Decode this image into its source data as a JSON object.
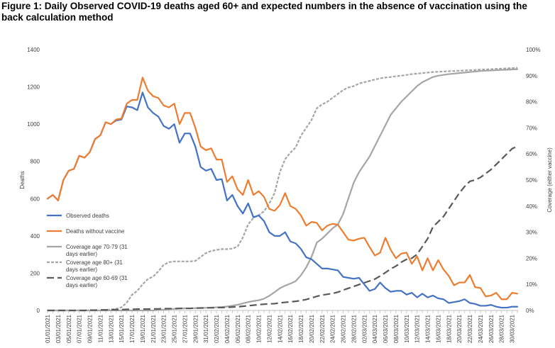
{
  "figure": {
    "title": "Figure 1: Daily Observed COVID-19 deaths aged 60+ and expected numbers in the absence of vaccination using the back calculation method"
  },
  "chart_data": {
    "type": "line",
    "title": "Figure 1: Daily Observed COVID-19 deaths aged 60+ and expected numbers in the absence of vaccination using the back calculation method",
    "xlabel": "",
    "ylabel": "Deaths",
    "y2label": "Coverage (either vaccine)",
    "ylim": [
      0,
      1400
    ],
    "y2lim": [
      0,
      100
    ],
    "yticks": [
      "0",
      "200",
      "400",
      "600",
      "800",
      "1000",
      "1200",
      "1400"
    ],
    "y2ticks": [
      "0%",
      "10%",
      "20%",
      "30%",
      "40%",
      "50%",
      "60%",
      "70%",
      "80%",
      "90%",
      "100%"
    ],
    "x": [
      "01/01/2021",
      "02/01/2021",
      "03/01/2021",
      "04/01/2021",
      "05/01/2021",
      "06/01/2021",
      "07/01/2021",
      "08/01/2021",
      "09/01/2021",
      "10/01/2021",
      "11/01/2021",
      "12/01/2021",
      "13/01/2021",
      "14/01/2021",
      "15/01/2021",
      "16/01/2021",
      "17/01/2021",
      "18/01/2021",
      "19/01/2021",
      "20/01/2021",
      "21/01/2021",
      "22/01/2021",
      "23/01/2021",
      "24/01/2021",
      "25/01/2021",
      "26/01/2021",
      "27/01/2021",
      "28/01/2021",
      "29/01/2021",
      "30/01/2021",
      "31/01/2021",
      "01/02/2021",
      "02/02/2021",
      "03/02/2021",
      "04/02/2021",
      "05/02/2021",
      "06/02/2021",
      "07/02/2021",
      "08/02/2021",
      "09/02/2021",
      "10/02/2021",
      "11/02/2021",
      "12/02/2021",
      "13/02/2021",
      "14/02/2021",
      "15/02/2021",
      "16/02/2021",
      "17/02/2021",
      "18/02/2021",
      "19/02/2021",
      "20/02/2021",
      "21/02/2021",
      "22/02/2021",
      "23/02/2021",
      "24/02/2021",
      "25/02/2021",
      "26/02/2021",
      "27/02/2021",
      "28/02/2021",
      "01/03/2021",
      "02/03/2021",
      "03/03/2021",
      "04/03/2021",
      "05/03/2021",
      "06/03/2021",
      "07/03/2021",
      "08/03/2021",
      "09/03/2021",
      "10/03/2021",
      "11/03/2021",
      "12/03/2021",
      "13/03/2021",
      "14/03/2021",
      "15/03/2021",
      "16/03/2021",
      "17/03/2021",
      "18/03/2021",
      "19/03/2021",
      "20/03/2021",
      "21/03/2021",
      "22/03/2021",
      "23/03/2021",
      "24/03/2021",
      "25/03/2021",
      "26/03/2021",
      "27/03/2021",
      "28/03/2021",
      "29/03/2021",
      "30/03/2021",
      "31/03/2021"
    ],
    "tick_labels": [
      "01/01/2021",
      "03/01/2021",
      "05/01/2021",
      "07/01/2021",
      "09/01/2021",
      "11/01/2021",
      "13/01/2021",
      "15/01/2021",
      "17/01/2021",
      "19/01/2021",
      "21/01/2021",
      "23/01/2021",
      "25/01/2021",
      "27/01/2021",
      "29/01/2021",
      "31/01/2021",
      "02/02/2021",
      "04/02/2021",
      "06/02/2021",
      "08/02/2021",
      "10/02/2021",
      "12/02/2021",
      "14/02/2021",
      "16/02/2021",
      "18/02/2021",
      "20/02/2021",
      "22/02/2021",
      "24/02/2021",
      "26/02/2021",
      "28/02/2021",
      "02/03/2021",
      "04/03/2021",
      "06/03/2021",
      "08/03/2021",
      "10/03/2021",
      "12/03/2021",
      "14/03/2021",
      "16/03/2021",
      "18/03/2021",
      "20/03/2021",
      "22/03/2021",
      "24/03/2021",
      "26/03/2021",
      "28/03/2021",
      "30/03/2021"
    ],
    "series": [
      {
        "name": "Observed deaths",
        "axis": "left",
        "color": "#4472C4",
        "dash": "none",
        "values": [
          600,
          620,
          590,
          700,
          750,
          760,
          830,
          820,
          850,
          920,
          940,
          1010,
          1000,
          1020,
          1025,
          1095,
          1090,
          1075,
          1170,
          1090,
          1060,
          1040,
          990,
          975,
          1000,
          900,
          950,
          950,
          880,
          770,
          750,
          760,
          700,
          705,
          590,
          620,
          560,
          520,
          575,
          500,
          510,
          480,
          420,
          400,
          400,
          420,
          370,
          360,
          330,
          285,
          275,
          250,
          225,
          225,
          220,
          215,
          180,
          175,
          170,
          175,
          140,
          105,
          115,
          150,
          120,
          100,
          105,
          105,
          85,
          95,
          70,
          90,
          70,
          80,
          65,
          60,
          40,
          45,
          50,
          60,
          40,
          35,
          25,
          25,
          30,
          20,
          15,
          15,
          20,
          20
        ]
      },
      {
        "name": "Deaths without vaccine",
        "axis": "left",
        "color": "#ED7D31",
        "dash": "none",
        "values": [
          600,
          620,
          590,
          700,
          750,
          760,
          830,
          820,
          850,
          920,
          940,
          1010,
          1000,
          1025,
          1030,
          1110,
          1130,
          1130,
          1250,
          1180,
          1150,
          1140,
          1100,
          1090,
          1110,
          1000,
          1060,
          1060,
          980,
          880,
          860,
          870,
          810,
          810,
          690,
          720,
          650,
          620,
          700,
          620,
          640,
          610,
          545,
          535,
          565,
          630,
          560,
          545,
          510,
          455,
          475,
          470,
          430,
          455,
          465,
          460,
          420,
          380,
          375,
          385,
          390,
          340,
          295,
          310,
          390,
          325,
          280,
          305,
          310,
          250,
          290,
          215,
          280,
          215,
          270,
          220,
          185,
          135,
          150,
          150,
          190,
          125,
          120,
          75,
          80,
          95,
          60,
          60,
          95,
          90
        ]
      },
      {
        "name": "Coverage age 70-79 (31 days earlier)",
        "axis": "right",
        "color": "#A5A5A5",
        "dash": "none",
        "values": [
          0,
          0,
          0,
          0,
          0,
          0,
          0,
          0,
          0,
          0,
          0,
          0,
          0,
          0,
          0,
          0,
          0,
          0,
          0,
          0,
          0,
          0.2,
          0.3,
          0.5,
          0.6,
          0.7,
          0.8,
          0.8,
          0.9,
          1.0,
          1.0,
          1.1,
          1.2,
          1.3,
          1.5,
          1.8,
          2.2,
          2.7,
          3.2,
          3.6,
          3.9,
          4.5,
          5.6,
          7.0,
          8.5,
          9.5,
          10.3,
          11.2,
          13.5,
          16.5,
          20.5,
          26.0,
          27.5,
          29.5,
          31.5,
          33.0,
          37.0,
          43.0,
          49.0,
          53.0,
          56.0,
          59.0,
          63.0,
          67.0,
          71.0,
          75.0,
          77.5,
          80.0,
          82.0,
          84.0,
          86.0,
          87.5,
          88.5,
          89.5,
          90.0,
          90.3,
          90.6,
          90.8,
          91.0,
          91.2,
          91.4,
          91.6,
          91.8,
          91.9,
          92.0,
          92.1,
          92.2,
          92.3,
          92.4,
          92.5
        ]
      },
      {
        "name": "Coverage age 80+ (31 days earlier)",
        "axis": "right",
        "color": "#A5A5A5",
        "dash": "4,2",
        "values": [
          0,
          0,
          0,
          0,
          0,
          0,
          0,
          0,
          0,
          0,
          0,
          0.2,
          0.3,
          0.6,
          1.2,
          3.0,
          6.0,
          7.5,
          10.0,
          12.0,
          13.0,
          15.0,
          17.5,
          18.5,
          18.8,
          18.8,
          18.8,
          18.8,
          19.0,
          20.5,
          22.0,
          22.8,
          23.2,
          23.5,
          23.5,
          23.7,
          24.5,
          28.0,
          33.0,
          35.5,
          36.5,
          38.0,
          41.0,
          45.0,
          53.0,
          58.0,
          60.5,
          62.5,
          67.0,
          70.0,
          73.0,
          77.5,
          79.0,
          80.0,
          81.5,
          83.0,
          84.5,
          85.5,
          86.0,
          87.0,
          87.5,
          88.0,
          88.5,
          89.0,
          89.3,
          89.5,
          89.8,
          90.0,
          90.3,
          90.6,
          90.8,
          91.0,
          91.2,
          91.4,
          91.5,
          91.6,
          91.7,
          91.8,
          91.9,
          92.0,
          92.1,
          92.2,
          92.3,
          92.4,
          92.5,
          92.6,
          92.7,
          92.8,
          92.9,
          93.0
        ]
      },
      {
        "name": "Coverage age 60-69 (31 days earlier)",
        "axis": "right",
        "color": "#595959",
        "dash": "10,5",
        "values": [
          0,
          0,
          0,
          0,
          0,
          0,
          0,
          0,
          0.1,
          0.1,
          0.2,
          0.2,
          0.3,
          0.3,
          0.3,
          0.4,
          0.4,
          0.5,
          0.5,
          0.5,
          0.6,
          0.6,
          0.7,
          0.7,
          0.7,
          0.8,
          0.8,
          0.8,
          0.9,
          0.9,
          1.0,
          1.0,
          1.1,
          1.1,
          1.2,
          1.3,
          1.4,
          1.6,
          1.8,
          2.0,
          2.2,
          2.4,
          2.5,
          2.6,
          2.9,
          3.1,
          3.3,
          3.5,
          3.8,
          4.2,
          4.8,
          5.4,
          5.9,
          6.2,
          6.5,
          7.0,
          7.8,
          8.5,
          9.2,
          9.9,
          10.6,
          11.3,
          12.0,
          13.2,
          14.5,
          15.9,
          17.0,
          18.5,
          19.6,
          20.0,
          21.5,
          24.5,
          27.5,
          32.0,
          34.0,
          36.0,
          39.0,
          42.0,
          45.0,
          47.5,
          49.5,
          50.0,
          51.0,
          52.5,
          54.0,
          56.0,
          58.0,
          60.0,
          62.0,
          63.0
        ]
      }
    ],
    "legend": [
      {
        "label_lines": [
          "Observed deaths"
        ]
      },
      {
        "label_lines": [
          "Deaths without vaccine"
        ]
      },
      {
        "label_lines": [
          "Coverage age 70-79 (31",
          "days earlier)"
        ]
      },
      {
        "label_lines": [
          "Coverage age 80+ (31",
          "days earlier)"
        ]
      },
      {
        "label_lines": [
          "Coverage age 60-69 (31",
          "days earlier)"
        ]
      }
    ],
    "legend_placement": "inside lower-left",
    "grid": false
  }
}
